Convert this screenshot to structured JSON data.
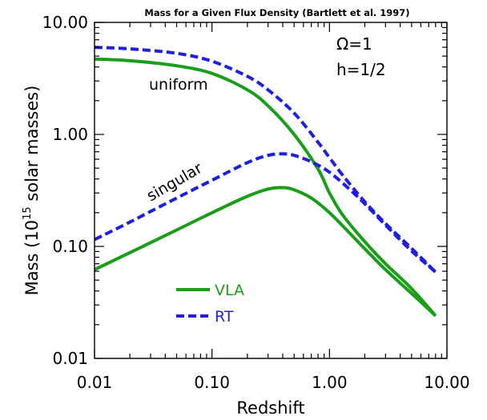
{
  "chart_data": {
    "type": "line",
    "title": "Mass for a Given Flux Density (Bartlett et al. 1997)",
    "xlabel": "Redshift",
    "ylabel_parts": [
      "Mass (10",
      "15",
      " solar masses)"
    ],
    "x_scale": "log",
    "y_scale": "log",
    "xlim": [
      0.01,
      10
    ],
    "ylim": [
      0.01,
      10
    ],
    "x_ticks": [
      {
        "value": 0.01,
        "label": "0.01"
      },
      {
        "value": 0.1,
        "label": "0.10"
      },
      {
        "value": 1,
        "label": "1.00"
      },
      {
        "value": 10,
        "label": "10.00"
      }
    ],
    "y_ticks": [
      {
        "value": 0.01,
        "label": "0.01"
      },
      {
        "value": 0.1,
        "label": "0.10"
      },
      {
        "value": 1,
        "label": "1.00"
      },
      {
        "value": 10,
        "label": "10.00"
      }
    ],
    "params": {
      "omega": "Ω=1",
      "h": "h=1/2"
    },
    "annotations": {
      "uniform": "uniform",
      "singular": "singular"
    },
    "colors": {
      "vla": "#1a9e1a",
      "rt": "#1f1fe0",
      "axis": "#000000"
    },
    "legend": {
      "placement": "lower-left",
      "items": [
        {
          "name": "VLA",
          "color": "#1a9e1a",
          "dash": "solid"
        },
        {
          "name": "RT",
          "color": "#1f1fe0",
          "dash": "dashed"
        }
      ]
    },
    "series": [
      {
        "name": "VLA",
        "style": "solid",
        "color": "#1a9e1a",
        "x": [
          0.01,
          0.02,
          0.05,
          0.1,
          0.2,
          0.3,
          0.5,
          0.8,
          1.0,
          1.3,
          2.0,
          3.0,
          5.0,
          8.0
        ],
        "values": [
          4.7,
          4.55,
          4.1,
          3.5,
          2.5,
          1.8,
          1.0,
          0.49,
          0.3,
          0.19,
          0.11,
          0.07,
          0.042,
          0.024
        ]
      },
      {
        "name": "RT",
        "style": "dashed",
        "color": "#1f1fe0",
        "x": [
          0.01,
          0.02,
          0.05,
          0.1,
          0.2,
          0.3,
          0.5,
          0.8,
          1.0,
          1.3,
          2.0,
          3.0,
          5.0,
          8.0
        ],
        "values": [
          6.0,
          5.8,
          5.3,
          4.5,
          3.3,
          2.5,
          1.55,
          0.85,
          0.62,
          0.43,
          0.25,
          0.16,
          0.096,
          0.059
        ]
      },
      {
        "name": "VLA",
        "style": "solid",
        "color": "#1a9e1a",
        "x": [
          0.01,
          0.02,
          0.05,
          0.1,
          0.2,
          0.3,
          0.4,
          0.5,
          0.7,
          1.0,
          1.5,
          2.0,
          3.0,
          5.0,
          8.0
        ],
        "values": [
          0.062,
          0.088,
          0.14,
          0.2,
          0.28,
          0.325,
          0.335,
          0.32,
          0.27,
          0.2,
          0.13,
          0.095,
          0.062,
          0.038,
          0.024
        ]
      },
      {
        "name": "RT",
        "style": "dashed",
        "color": "#1f1fe0",
        "x": [
          0.01,
          0.02,
          0.05,
          0.1,
          0.2,
          0.3,
          0.4,
          0.5,
          0.7,
          1.0,
          1.5,
          2.0,
          3.0,
          5.0,
          8.0
        ],
        "values": [
          0.115,
          0.165,
          0.27,
          0.39,
          0.56,
          0.65,
          0.67,
          0.65,
          0.57,
          0.46,
          0.32,
          0.24,
          0.155,
          0.091,
          0.059
        ]
      }
    ]
  }
}
